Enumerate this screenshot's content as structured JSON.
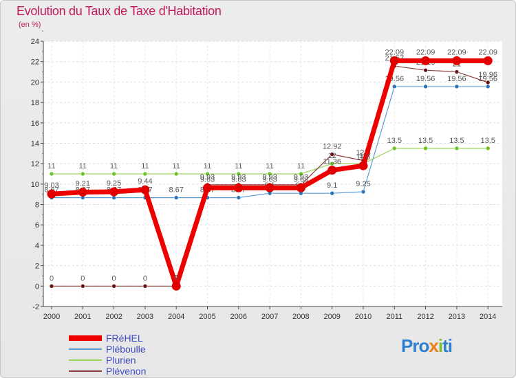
{
  "chart_data": {
    "type": "line",
    "title": "Evolution du Taux de Taxe d'Habitation",
    "ylabel": "(en %)",
    "xlabel": "",
    "x": [
      "2000",
      "2001",
      "2002",
      "2003",
      "2004",
      "2005",
      "2006",
      "2007",
      "2008",
      "2009",
      "2010",
      "2011",
      "2012",
      "2013",
      "2014"
    ],
    "yticks": [
      "24",
      "22",
      "20",
      "18",
      "16",
      "14",
      "12",
      "10",
      "8",
      "6",
      "4",
      "2",
      "0",
      "-2"
    ],
    "ylim": [
      -2,
      24
    ],
    "series": [
      {
        "name": "Pléboulle",
        "color": "#5b9bd5",
        "dot": "#2e75b6",
        "width": 1.2,
        "values": [
          8.67,
          8.67,
          8.67,
          8.67,
          8.67,
          8.67,
          8.67,
          9.1,
          9.1,
          9.1,
          9.25,
          19.56,
          19.56,
          19.56,
          19.56
        ],
        "labels": [
          "8.67",
          "8.67",
          "8.67",
          "8.67",
          "8.67",
          "8.67",
          "8.67",
          "9.1",
          "9.1",
          "9.1",
          "9.25",
          "19.56",
          "19.56",
          "19.56",
          "19.56"
        ]
      },
      {
        "name": "Plurien",
        "color": "#9ad35a",
        "dot": "#6cc22a",
        "width": 1.2,
        "values": [
          11,
          11,
          11,
          11,
          11,
          11,
          11,
          11,
          11,
          12,
          12,
          13.5,
          13.5,
          13.5,
          13.5
        ],
        "labels": [
          "11",
          "11",
          "11",
          "11",
          "11",
          "11",
          "11",
          "11",
          "11",
          "12",
          "12",
          "13.5",
          "13.5",
          "13.5",
          "13.5"
        ]
      },
      {
        "name": "Plévenon",
        "color": "#8b3a3a",
        "dot": "#6b1515",
        "width": 1.2,
        "values": [
          0,
          0,
          0,
          0,
          0,
          9.93,
          9.93,
          9.93,
          9.93,
          12.92,
          12.3,
          21.57,
          21.16,
          21,
          19.96
        ],
        "labels": [
          "0",
          "0",
          "0",
          "0",
          "0",
          "9.93",
          "9.93",
          "9.93",
          "9.93",
          "12.92",
          "12.3",
          "21.57",
          "21.16",
          "21",
          "19.96"
        ]
      },
      {
        "name": "FRéHEL",
        "color": "#ee0000",
        "dot": "#e00000",
        "width": 7,
        "values": [
          9.03,
          9.21,
          9.25,
          9.44,
          0,
          9.63,
          9.63,
          9.63,
          9.63,
          11.36,
          11.8,
          22.09,
          22.09,
          22.09,
          22.09
        ],
        "labels": [
          "9.03",
          "9.21",
          "9.25",
          "9.44",
          "0",
          "9.63",
          "9.63",
          "9.63",
          "9.63",
          "11.36",
          "11.8",
          "22.09",
          "22.09",
          "22.09",
          "22.09"
        ]
      }
    ],
    "legend_order": [
      "FRéHEL",
      "Pléboulle",
      "Plurien",
      "Plévenon"
    ]
  }
}
